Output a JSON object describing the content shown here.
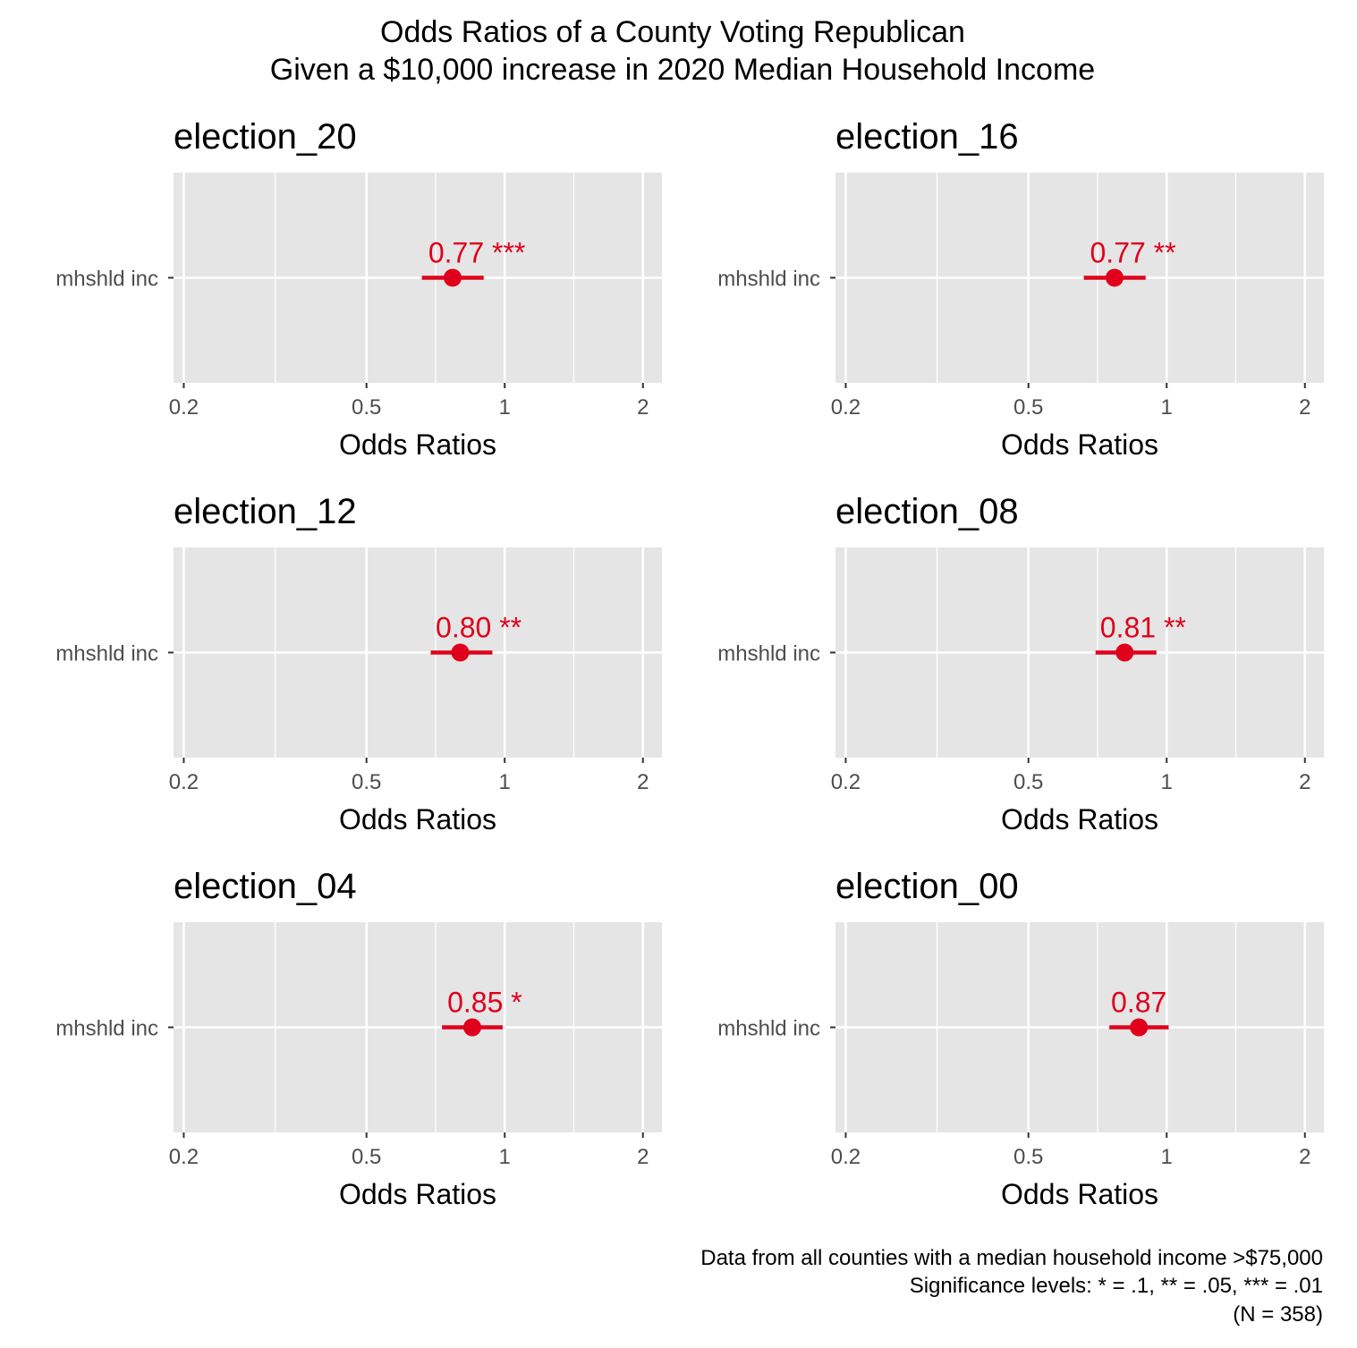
{
  "title_line1": "Odds Ratios of a County Voting Republican",
  "title_line2": "Given a $10,000 increase in 2020 Median Household Income",
  "caption": [
    "Data from all counties with a median household income >$75,000",
    "Significance levels: * = .1, ** = .05, *** = .01",
    "(N = 358)"
  ],
  "colors": {
    "panel_background": "#e5e5e5",
    "grid_major": "#ffffff",
    "point": "#e0001b",
    "axis_text": "#4d4d4d",
    "text": "#000000"
  },
  "chart_data": [
    {
      "type": "scatter",
      "title": "election_20",
      "xlabel": "Odds Ratios",
      "ylabel": "",
      "x_scale": "log",
      "xlim": [
        0.19,
        2.2
      ],
      "x_ticks": [
        0.2,
        0.5,
        1,
        2
      ],
      "x_tick_labels": [
        "0.2",
        "0.5",
        "1",
        "2"
      ],
      "categories": [
        "mhshld inc"
      ],
      "estimate": 0.77,
      "ci": [
        0.66,
        0.9
      ],
      "label": "0.77 ***"
    },
    {
      "type": "scatter",
      "title": "election_16",
      "xlabel": "Odds Ratios",
      "ylabel": "",
      "x_scale": "log",
      "xlim": [
        0.19,
        2.2
      ],
      "x_ticks": [
        0.2,
        0.5,
        1,
        2
      ],
      "x_tick_labels": [
        "0.2",
        "0.5",
        "1",
        "2"
      ],
      "categories": [
        "mhshld inc"
      ],
      "estimate": 0.77,
      "ci": [
        0.66,
        0.9
      ],
      "label": "0.77 **"
    },
    {
      "type": "scatter",
      "title": "election_12",
      "xlabel": "Odds Ratios",
      "ylabel": "",
      "x_scale": "log",
      "xlim": [
        0.19,
        2.2
      ],
      "x_ticks": [
        0.2,
        0.5,
        1,
        2
      ],
      "x_tick_labels": [
        "0.2",
        "0.5",
        "1",
        "2"
      ],
      "categories": [
        "mhshld inc"
      ],
      "estimate": 0.8,
      "ci": [
        0.69,
        0.94
      ],
      "label": "0.80 **"
    },
    {
      "type": "scatter",
      "title": "election_08",
      "xlabel": "Odds Ratios",
      "ylabel": "",
      "x_scale": "log",
      "xlim": [
        0.19,
        2.2
      ],
      "x_ticks": [
        0.2,
        0.5,
        1,
        2
      ],
      "x_tick_labels": [
        "0.2",
        "0.5",
        "1",
        "2"
      ],
      "categories": [
        "mhshld inc"
      ],
      "estimate": 0.81,
      "ci": [
        0.7,
        0.95
      ],
      "label": "0.81 **"
    },
    {
      "type": "scatter",
      "title": "election_04",
      "xlabel": "Odds Ratios",
      "ylabel": "",
      "x_scale": "log",
      "xlim": [
        0.19,
        2.2
      ],
      "x_ticks": [
        0.2,
        0.5,
        1,
        2
      ],
      "x_tick_labels": [
        "0.2",
        "0.5",
        "1",
        "2"
      ],
      "categories": [
        "mhshld inc"
      ],
      "estimate": 0.85,
      "ci": [
        0.73,
        0.99
      ],
      "label": "0.85 *"
    },
    {
      "type": "scatter",
      "title": "election_00",
      "xlabel": "Odds Ratios",
      "ylabel": "",
      "x_scale": "log",
      "xlim": [
        0.19,
        2.2
      ],
      "x_ticks": [
        0.2,
        0.5,
        1,
        2
      ],
      "x_tick_labels": [
        "0.2",
        "0.5",
        "1",
        "2"
      ],
      "categories": [
        "mhshld inc"
      ],
      "estimate": 0.87,
      "ci": [
        0.75,
        1.01
      ],
      "label": "0.87"
    }
  ]
}
